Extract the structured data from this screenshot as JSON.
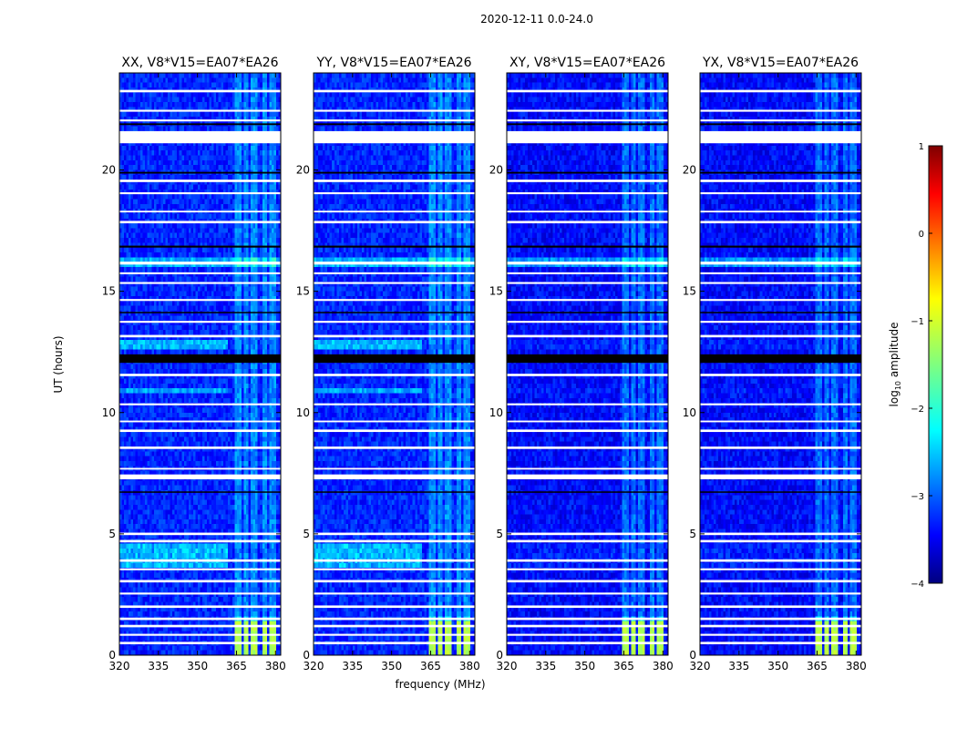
{
  "figure": {
    "title": "2020-12-11 0.0-24.0",
    "ylabel": "UT (hours)",
    "xlabel": "frequency (MHz)",
    "colorbar_label_prefix": "log",
    "colorbar_label_sub": "10",
    "colorbar_label_suffix": " amplitude"
  },
  "chart_data": {
    "type": "heatmap",
    "colormap": "jet",
    "x_range_mhz": [
      320,
      382
    ],
    "y_range_hours": [
      0,
      24
    ],
    "x_ticks": [
      "320",
      "335",
      "350",
      "365",
      "380"
    ],
    "x_tick_values": [
      320,
      335,
      350,
      365,
      380
    ],
    "y_ticks": [
      "0",
      "5",
      "10",
      "15",
      "20"
    ],
    "y_tick_values": [
      0,
      5,
      10,
      15,
      20
    ],
    "colorbar": {
      "range": [
        -4,
        1
      ],
      "ticks": [
        "1",
        "0",
        "−1",
        "−2",
        "−3",
        "−4"
      ],
      "tick_values": [
        1,
        0,
        -1,
        -2,
        -3,
        -4
      ]
    },
    "panels": [
      {
        "title": "XX, V8*V15=EA07*EA26",
        "baseline": -3.2,
        "rfi_level": -2.15,
        "lowband_boost": 0.9
      },
      {
        "title": "YY, V8*V15=EA07*EA26",
        "baseline": -3.2,
        "rfi_level": -2.15,
        "lowband_boost": 0.9
      },
      {
        "title": "XY, V8*V15=EA07*EA26",
        "baseline": -3.35,
        "rfi_level": -2.3,
        "lowband_boost": 0.15
      },
      {
        "title": "YX, V8*V15=EA07*EA26",
        "baseline": -3.35,
        "rfi_level": -2.3,
        "lowband_boost": 0.15
      }
    ],
    "rfi_freq_bands_mhz": [
      [
        364.5,
        367
      ],
      [
        368,
        369.5
      ],
      [
        370.5,
        373.5
      ],
      [
        375,
        376.5
      ],
      [
        378,
        380.5
      ]
    ],
    "flagged_hours": [
      [
        0.45,
        0.55
      ],
      [
        0.8,
        0.88
      ],
      [
        1.15,
        1.25
      ],
      [
        1.45,
        1.55
      ],
      [
        1.95,
        2.05
      ],
      [
        2.5,
        2.58
      ],
      [
        3.0,
        3.1
      ],
      [
        3.5,
        3.58
      ],
      [
        3.85,
        3.95
      ],
      [
        4.65,
        4.75
      ],
      [
        4.95,
        5.05
      ],
      [
        7.25,
        7.45
      ],
      [
        7.65,
        7.72
      ],
      [
        8.5,
        8.6
      ],
      [
        9.2,
        9.3
      ],
      [
        9.6,
        9.67
      ],
      [
        10.3,
        10.38
      ],
      [
        11.5,
        11.6
      ],
      [
        13.1,
        13.2
      ],
      [
        13.7,
        13.78
      ],
      [
        14.6,
        14.68
      ],
      [
        15.3,
        15.38
      ],
      [
        15.7,
        15.78
      ],
      [
        16.1,
        16.22
      ],
      [
        17.8,
        17.9
      ],
      [
        18.25,
        18.32
      ],
      [
        19.0,
        19.08
      ],
      [
        19.5,
        19.6
      ],
      [
        21.1,
        21.6
      ],
      [
        22.0,
        22.08
      ],
      [
        22.4,
        22.48
      ],
      [
        23.2,
        23.3
      ]
    ],
    "dropout_hours": [
      [
        12.05,
        12.4
      ],
      [
        16.8,
        16.88
      ],
      [
        19.85,
        19.92
      ],
      [
        21.85,
        21.92
      ],
      [
        14.1,
        14.15
      ],
      [
        6.7,
        6.75
      ]
    ]
  }
}
